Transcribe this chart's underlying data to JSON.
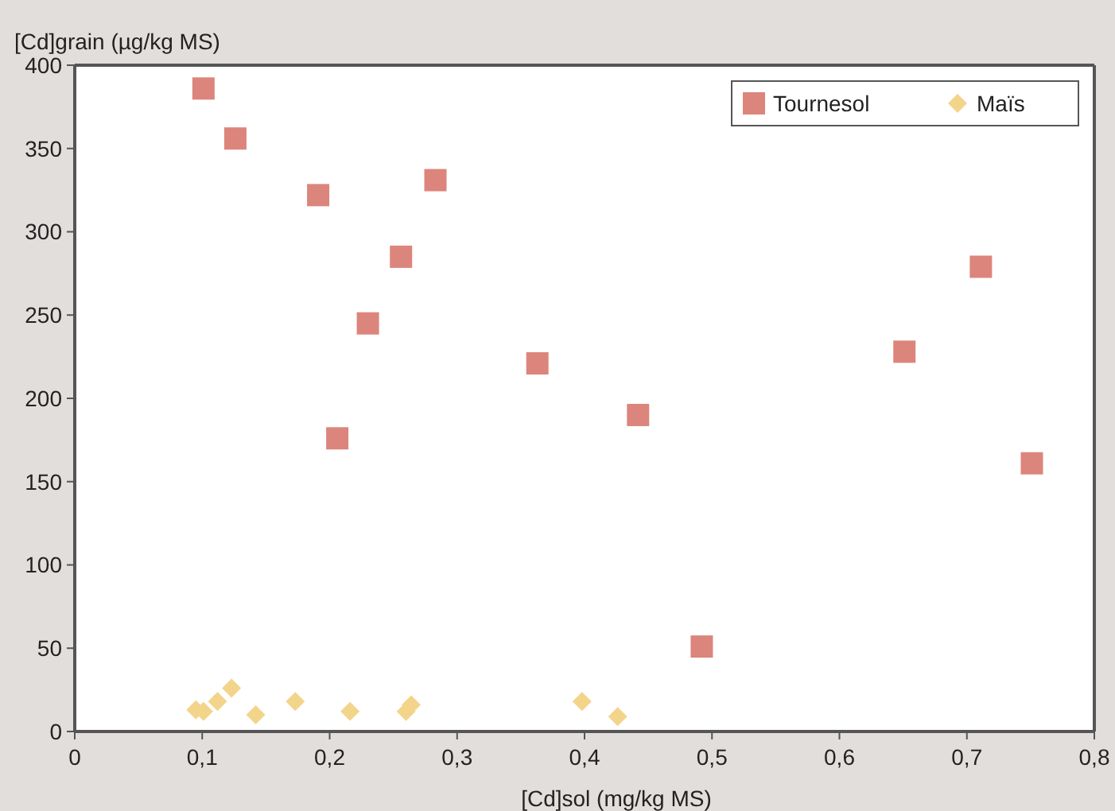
{
  "chart_data": {
    "type": "scatter",
    "ylabel": "[Cd]grain (µg/kg MS)",
    "xlabel": "[Cd]sol (mg/kg MS)",
    "xlim": [
      0,
      0.8
    ],
    "xticks": [
      0,
      {
        "value": 0.1,
        "label": "0,1"
      },
      {
        "value": 0.2,
        "label": "0,2"
      },
      {
        "value": 0.3,
        "label": "0,3"
      },
      {
        "value": 0.4,
        "label": "0,4"
      },
      {
        "value": 0.5,
        "label": "0,5"
      },
      {
        "value": 0.6,
        "label": "0,6"
      },
      {
        "value": 0.7,
        "label": "0,7"
      },
      {
        "value": 0.8,
        "label": "0,8"
      }
    ],
    "ylim": [
      0,
      400
    ],
    "yticks": [
      0,
      50,
      100,
      150,
      200,
      250,
      300,
      350,
      400
    ],
    "grid": false,
    "legend": "top right",
    "series": [
      {
        "name": "Tournesol",
        "color": "#dc857c",
        "marker": "square",
        "x": [
          0.101,
          0.126,
          0.191,
          0.283,
          0.256,
          0.23,
          0.206,
          0.363,
          0.711,
          0.651,
          0.442,
          0.751,
          0.492
        ],
        "values": [
          386,
          356,
          322,
          331,
          285,
          245,
          176,
          221,
          279,
          228,
          190,
          161,
          51
        ]
      },
      {
        "name": "Maïs",
        "color": "#f3d48b",
        "marker": "diamond",
        "x": [
          0.095,
          0.101,
          0.112,
          0.123,
          0.142,
          0.173,
          0.216,
          0.26,
          0.264,
          0.398,
          0.426
        ],
        "values": [
          13,
          12,
          18,
          26,
          10,
          18,
          12,
          12,
          16,
          18,
          9
        ]
      }
    ]
  }
}
